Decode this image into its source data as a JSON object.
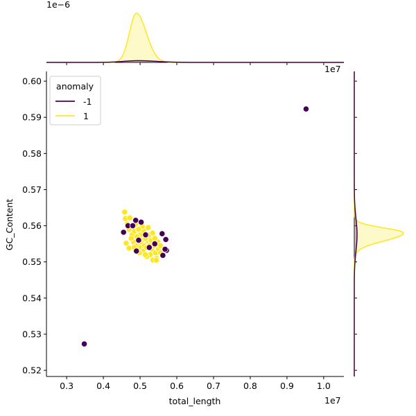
{
  "chart_data": {
    "type": "scatter",
    "xlabel": "total_length",
    "ylabel": "GC_Content",
    "x_offset_text": "1e7",
    "top_offset_text": "1e−6",
    "x_ticks": [
      "0.3",
      "0.4",
      "0.5",
      "0.6",
      "0.7",
      "0.8",
      "0.9",
      "1.0"
    ],
    "y_ticks": [
      "0.52",
      "0.53",
      "0.54",
      "0.55",
      "0.56",
      "0.57",
      "0.58",
      "0.59",
      "0.60"
    ],
    "xlim": [
      2450000,
      10550000
    ],
    "ylim": [
      0.5183,
      0.6027
    ],
    "grid": false,
    "legend": {
      "title": "anomaly",
      "placement": "top-left",
      "entries": [
        {
          "label": "-1",
          "color": "#440154"
        },
        {
          "label": "1",
          "color": "#fde725"
        }
      ]
    },
    "series": [
      {
        "name": "-1",
        "color": "#440154",
        "points": [
          [
            9520000,
            0.5923
          ],
          [
            3480000,
            0.5273
          ],
          [
            4550000,
            0.5582
          ],
          [
            4880000,
            0.5615
          ],
          [
            5030000,
            0.561
          ],
          [
            4670000,
            0.56
          ],
          [
            4960000,
            0.556
          ],
          [
            4800000,
            0.56
          ],
          [
            5600000,
            0.5578
          ],
          [
            5700000,
            0.5562
          ],
          [
            5720000,
            0.5532
          ],
          [
            5620000,
            0.5518
          ],
          [
            5680000,
            0.5535
          ],
          [
            5250000,
            0.554
          ],
          [
            5400000,
            0.555
          ],
          [
            4900000,
            0.553
          ],
          [
            5150000,
            0.5575
          ]
        ]
      },
      {
        "name": "1",
        "color": "#fde725",
        "points": [
          [
            4580000,
            0.5638
          ],
          [
            4600000,
            0.562
          ],
          [
            4650000,
            0.5605
          ],
          [
            4720000,
            0.5622
          ],
          [
            4700000,
            0.559
          ],
          [
            4780000,
            0.5575
          ],
          [
            4620000,
            0.5552
          ],
          [
            4700000,
            0.5538
          ],
          [
            4850000,
            0.5585
          ],
          [
            4820000,
            0.5555
          ],
          [
            4900000,
            0.5545
          ],
          [
            4880000,
            0.5605
          ],
          [
            4950000,
            0.559
          ],
          [
            5000000,
            0.5575
          ],
          [
            5050000,
            0.556
          ],
          [
            5020000,
            0.554
          ],
          [
            5100000,
            0.5585
          ],
          [
            5150000,
            0.5565
          ],
          [
            5080000,
            0.553
          ],
          [
            5200000,
            0.555
          ],
          [
            5250000,
            0.5575
          ],
          [
            5300000,
            0.556
          ],
          [
            5320000,
            0.5535
          ],
          [
            5280000,
            0.552
          ],
          [
            5380000,
            0.5545
          ],
          [
            5420000,
            0.5525
          ],
          [
            5450000,
            0.551
          ],
          [
            5480000,
            0.5555
          ],
          [
            5500000,
            0.5535
          ],
          [
            5550000,
            0.5545
          ],
          [
            5560000,
            0.5525
          ],
          [
            5180000,
            0.5515
          ],
          [
            5350000,
            0.5505
          ],
          [
            5440000,
            0.5505
          ],
          [
            4980000,
            0.5525
          ],
          [
            5120000,
            0.5545
          ],
          [
            4760000,
            0.5565
          ],
          [
            4920000,
            0.557
          ],
          [
            5220000,
            0.5595
          ],
          [
            5060000,
            0.5598
          ],
          [
            5340000,
            0.558
          ],
          [
            5180000,
            0.554
          ],
          [
            4840000,
            0.554
          ],
          [
            5260000,
            0.5545
          ],
          [
            5400000,
            0.5565
          ],
          [
            5000000,
            0.5555
          ],
          [
            4960000,
            0.559
          ],
          [
            5140000,
            0.552
          ]
        ]
      }
    ],
    "marginal_top": {
      "type": "kde",
      "series": [
        {
          "name": "1",
          "color": "#fde725",
          "peak_x": 4900000
        },
        {
          "name": "-1",
          "color": "#440154",
          "peak_x": 4950000
        }
      ]
    },
    "marginal_right": {
      "type": "kde",
      "series": [
        {
          "name": "1",
          "color": "#fde725",
          "peak_y": 0.558
        },
        {
          "name": "-1",
          "color": "#440154",
          "peak_y": 0.5575
        }
      ]
    }
  }
}
